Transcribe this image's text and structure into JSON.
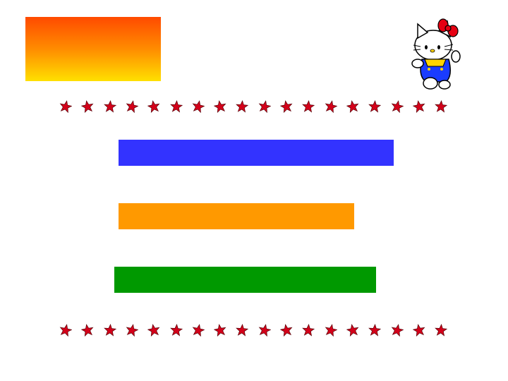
{
  "slide": {
    "gradient_colors": [
      "#ff4a00",
      "#ff8c00",
      "#ffe000"
    ],
    "bars": [
      {
        "name": "blue-bar",
        "color": "#3333ff"
      },
      {
        "name": "orange-bar",
        "color": "#ff9900"
      },
      {
        "name": "green-bar",
        "color": "#009900"
      }
    ],
    "star_rows": [
      {
        "name": "top-star-row",
        "icon": "red-star-icon",
        "count": 18
      },
      {
        "name": "bottom-star-row",
        "icon": "red-star-icon",
        "count": 18
      }
    ],
    "mascot": {
      "icon": "hello-kitty-icon"
    }
  }
}
